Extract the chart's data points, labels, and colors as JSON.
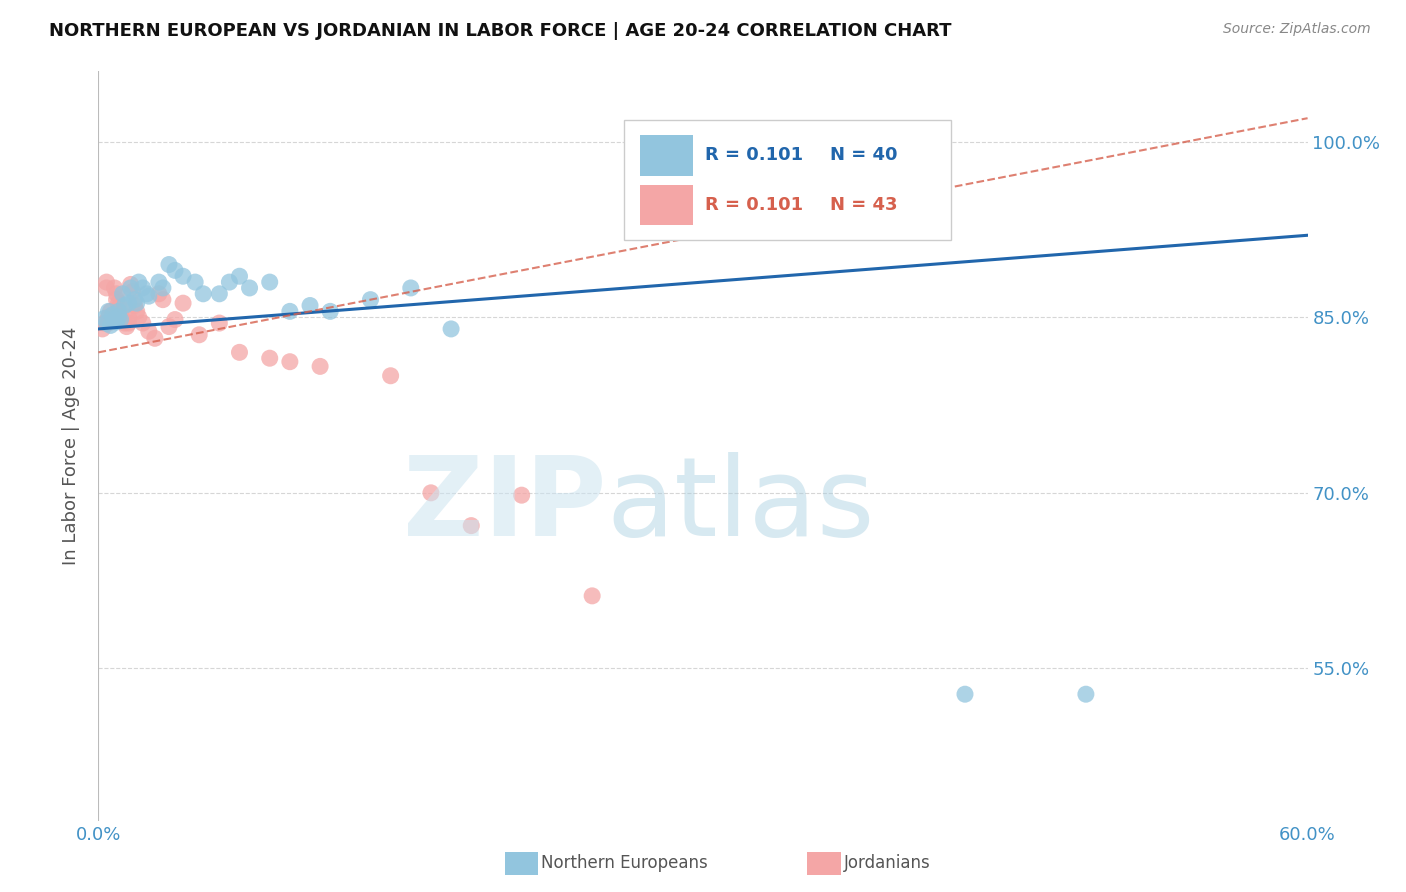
{
  "title": "NORTHERN EUROPEAN VS JORDANIAN IN LABOR FORCE | AGE 20-24 CORRELATION CHART",
  "source": "Source: ZipAtlas.com",
  "ylabel": "In Labor Force | Age 20-24",
  "xlim": [
    0.0,
    0.6
  ],
  "ylim": [
    0.42,
    1.06
  ],
  "yticks": [
    0.55,
    0.7,
    0.85,
    1.0
  ],
  "ytick_labels": [
    "55.0%",
    "70.0%",
    "85.0%",
    "100.0%"
  ],
  "xtick_labels_left": "0.0%",
  "xtick_labels_right": "60.0%",
  "blue_color": "#92c5de",
  "pink_color": "#f4a6a6",
  "blue_line_color": "#2166ac",
  "pink_line_color": "#d6604d",
  "axis_color": "#4292c6",
  "grid_color": "#bbbbbb",
  "northern_europeans_x": [
    0.003,
    0.004,
    0.005,
    0.006,
    0.007,
    0.008,
    0.009,
    0.01,
    0.01,
    0.011,
    0.012,
    0.013,
    0.015,
    0.016,
    0.018,
    0.019,
    0.02,
    0.022,
    0.024,
    0.025,
    0.03,
    0.032,
    0.035,
    0.038,
    0.042,
    0.048,
    0.052,
    0.06,
    0.065,
    0.07,
    0.075,
    0.085,
    0.095,
    0.105,
    0.115,
    0.135,
    0.155,
    0.175,
    0.43,
    0.49
  ],
  "northern_europeans_y": [
    0.849,
    0.845,
    0.855,
    0.843,
    0.852,
    0.848,
    0.846,
    0.855,
    0.85,
    0.848,
    0.87,
    0.86,
    0.862,
    0.875,
    0.865,
    0.862,
    0.88,
    0.875,
    0.87,
    0.868,
    0.88,
    0.875,
    0.895,
    0.89,
    0.885,
    0.88,
    0.87,
    0.87,
    0.88,
    0.885,
    0.875,
    0.88,
    0.855,
    0.86,
    0.855,
    0.865,
    0.875,
    0.84,
    0.528,
    0.528
  ],
  "jordanians_x": [
    0.002,
    0.003,
    0.004,
    0.004,
    0.005,
    0.005,
    0.006,
    0.007,
    0.008,
    0.009,
    0.009,
    0.01,
    0.01,
    0.011,
    0.012,
    0.013,
    0.014,
    0.015,
    0.015,
    0.016,
    0.017,
    0.018,
    0.019,
    0.02,
    0.022,
    0.025,
    0.028,
    0.03,
    0.032,
    0.035,
    0.038,
    0.042,
    0.05,
    0.06,
    0.07,
    0.085,
    0.095,
    0.11,
    0.145,
    0.165,
    0.185,
    0.21,
    0.245
  ],
  "jordanians_y": [
    0.84,
    0.845,
    0.88,
    0.875,
    0.85,
    0.845,
    0.855,
    0.848,
    0.875,
    0.87,
    0.865,
    0.862,
    0.858,
    0.852,
    0.848,
    0.845,
    0.842,
    0.85,
    0.845,
    0.878,
    0.872,
    0.86,
    0.855,
    0.85,
    0.845,
    0.838,
    0.832,
    0.87,
    0.865,
    0.842,
    0.848,
    0.862,
    0.835,
    0.845,
    0.82,
    0.815,
    0.812,
    0.808,
    0.8,
    0.7,
    0.672,
    0.698,
    0.612
  ],
  "blue_trend_x": [
    0.0,
    0.6
  ],
  "blue_trend_y": [
    0.84,
    0.92
  ],
  "pink_trend_x": [
    0.0,
    0.6
  ],
  "pink_trend_y": [
    0.82,
    1.02
  ]
}
